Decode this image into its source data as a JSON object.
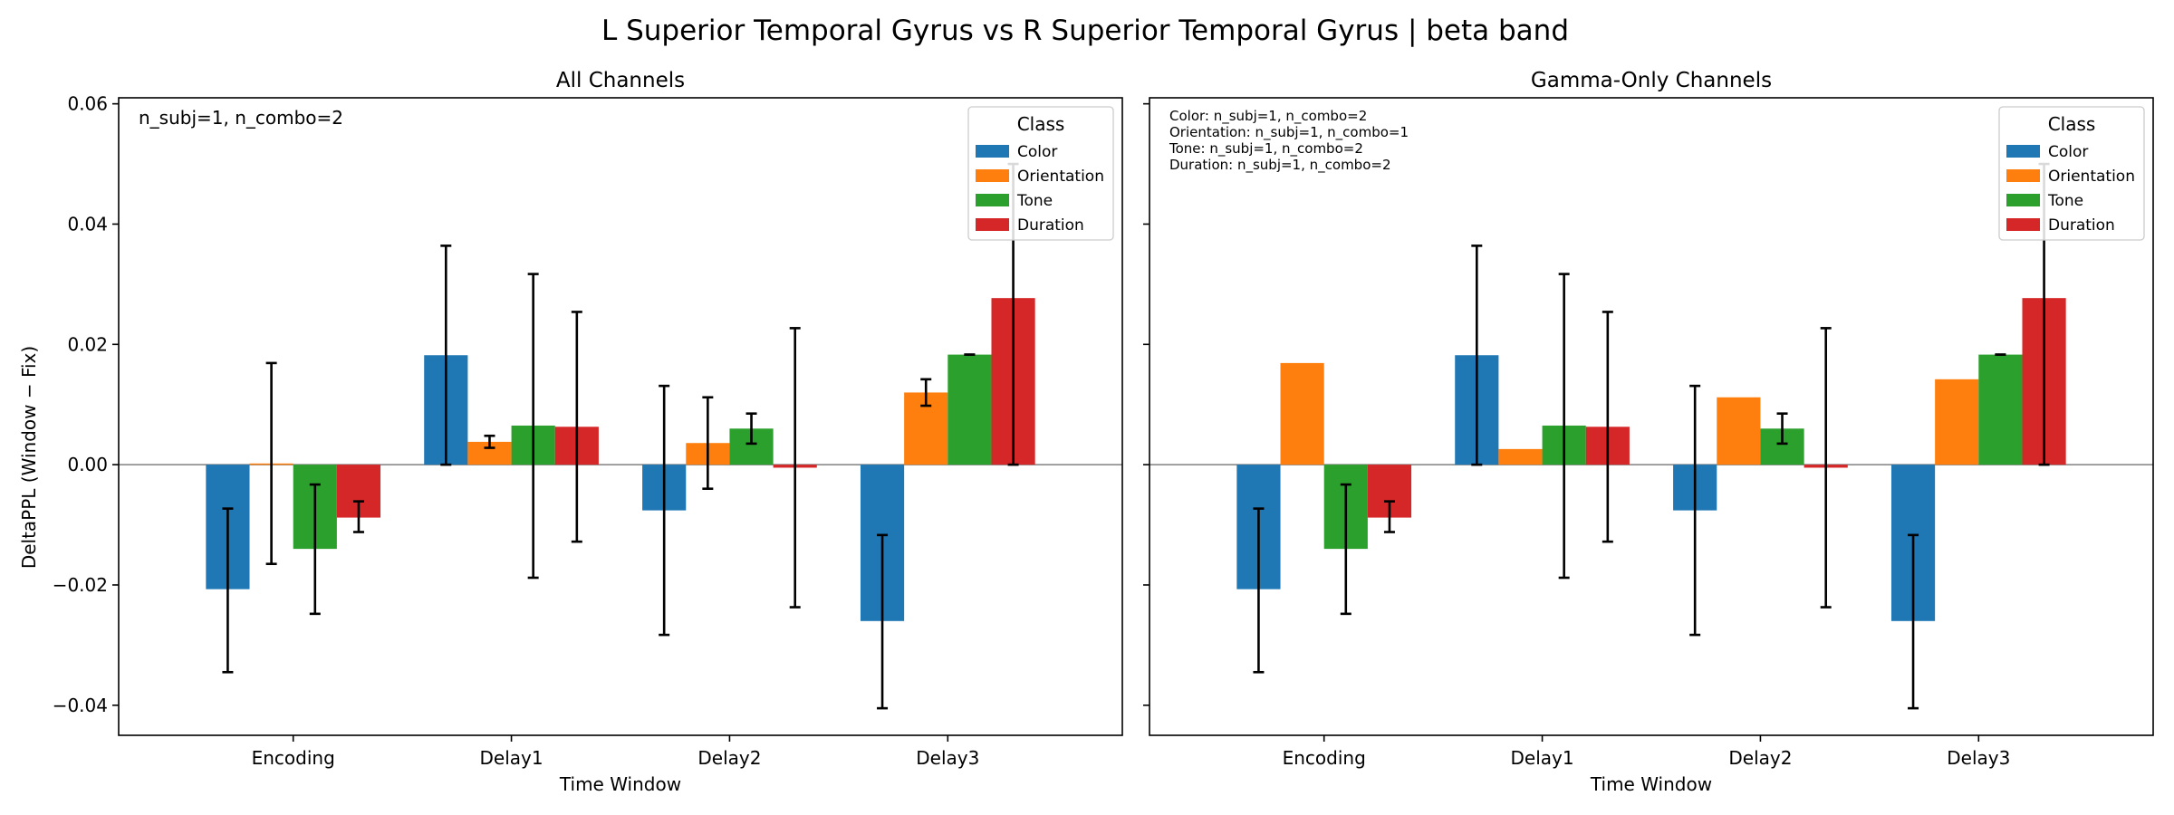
{
  "figure": {
    "suptitle": "L Superior Temporal Gyrus vs R Superior Temporal Gyrus  |  beta band",
    "ylabel": "DeltaPPL (Window − Fix)",
    "legend_title": "Class"
  },
  "chart_data": [
    {
      "type": "bar",
      "title": "All Channels",
      "xlabel": "Time Window",
      "ylabel": "DeltaPPL (Window − Fix)",
      "ylim": [
        -0.045,
        0.061
      ],
      "yticks": [
        -0.04,
        -0.02,
        0.0,
        0.02,
        0.04,
        0.06
      ],
      "ytick_labels": [
        "−0.04",
        "−0.02",
        "0.00",
        "0.02",
        "0.04",
        "0.06"
      ],
      "categories": [
        "Encoding",
        "Delay1",
        "Delay2",
        "Delay3"
      ],
      "legend": {
        "title": "Class",
        "position": "upper right"
      },
      "annotation": [
        "n_subj=1, n_combo=2"
      ],
      "series": [
        {
          "name": "Color",
          "color": "#1f77b4",
          "values": [
            -0.0207,
            0.0182,
            -0.0076,
            -0.026
          ],
          "err_low": [
            -0.0345,
            0.0,
            -0.0283,
            -0.0405
          ],
          "err_high": [
            -0.0073,
            0.0364,
            0.0131,
            -0.0117
          ]
        },
        {
          "name": "Orientation",
          "color": "#ff7f0e",
          "values": [
            0.0002,
            0.0038,
            0.0036,
            0.012
          ],
          "err_low": [
            -0.0165,
            0.0028,
            -0.004,
            0.0098
          ],
          "err_high": [
            0.0169,
            0.0048,
            0.0112,
            0.0142
          ]
        },
        {
          "name": "Tone",
          "color": "#2ca02c",
          "values": [
            -0.014,
            0.0065,
            0.006,
            0.0183
          ],
          "err_low": [
            -0.0248,
            -0.0188,
            0.0035,
            0.0183
          ],
          "err_high": [
            -0.0033,
            0.0317,
            0.0085,
            0.0183
          ]
        },
        {
          "name": "Duration",
          "color": "#d62728",
          "values": [
            -0.0088,
            0.0063,
            -0.0005,
            0.0277
          ],
          "err_low": [
            -0.0112,
            -0.0128,
            -0.0237,
            0.0
          ],
          "err_high": [
            -0.0061,
            0.0254,
            0.0227,
            0.05
          ]
        }
      ]
    },
    {
      "type": "bar",
      "title": "Gamma-Only Channels",
      "xlabel": "Time Window",
      "ylim": [
        -0.045,
        0.061
      ],
      "yticks": [
        -0.04,
        -0.02,
        0.0,
        0.02,
        0.04,
        0.06
      ],
      "categories": [
        "Encoding",
        "Delay1",
        "Delay2",
        "Delay3"
      ],
      "legend": {
        "title": "Class",
        "position": "upper right"
      },
      "annotation": [
        "Color: n_subj=1, n_combo=2",
        "Orientation: n_subj=1, n_combo=1",
        "Tone: n_subj=1, n_combo=2",
        "Duration: n_subj=1, n_combo=2"
      ],
      "series": [
        {
          "name": "Color",
          "color": "#1f77b4",
          "values": [
            -0.0207,
            0.0182,
            -0.0076,
            -0.026
          ],
          "err_low": [
            -0.0345,
            0.0,
            -0.0283,
            -0.0405
          ],
          "err_high": [
            -0.0073,
            0.0364,
            0.0131,
            -0.0117
          ]
        },
        {
          "name": "Orientation",
          "color": "#ff7f0e",
          "values": [
            0.0169,
            0.0026,
            0.0112,
            0.0142
          ],
          "err_low": [
            null,
            null,
            null,
            null
          ],
          "err_high": [
            null,
            null,
            null,
            null
          ]
        },
        {
          "name": "Tone",
          "color": "#2ca02c",
          "values": [
            -0.014,
            0.0065,
            0.006,
            0.0183
          ],
          "err_low": [
            -0.0248,
            -0.0188,
            0.0035,
            0.0183
          ],
          "err_high": [
            -0.0033,
            0.0317,
            0.0085,
            0.0183
          ]
        },
        {
          "name": "Duration",
          "color": "#d62728",
          "values": [
            -0.0088,
            0.0063,
            -0.0005,
            0.0277
          ],
          "err_low": [
            -0.0112,
            -0.0128,
            -0.0237,
            0.0
          ],
          "err_high": [
            -0.0061,
            0.0254,
            0.0227,
            0.05
          ]
        }
      ]
    }
  ]
}
